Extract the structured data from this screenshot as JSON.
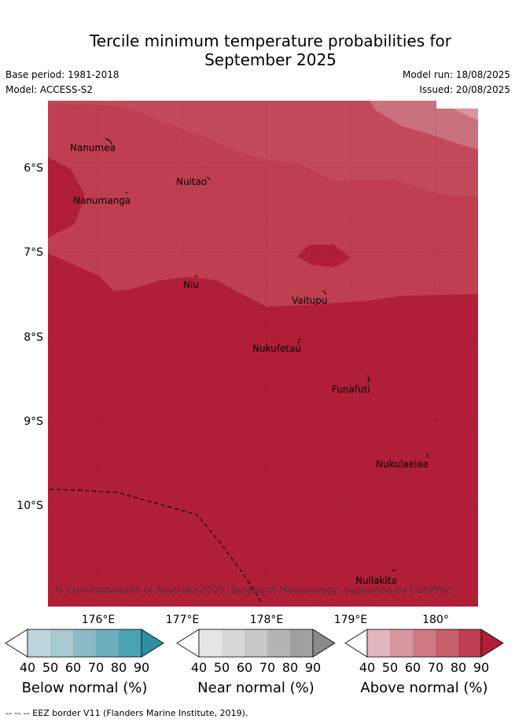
{
  "title_line1": "Tercile minimum temperature probabilities for",
  "title_line2": "September 2025",
  "base_period": "Base period: 1981-2018",
  "model": "Model: ACCESS-S2",
  "model_run": "Model run: 18/08/2025",
  "issued": "Issued: 20/08/2025",
  "copyright": "© Commonwealth of Australia 2025, Bureau of Meteorology, supported by COSPPac",
  "footer": "-- -- -- EEZ border V11 (Flanders Marine Institute, 2019).",
  "axes": {
    "lon_ticks": [
      "176°E",
      "177°E",
      "178°E",
      "179°E",
      "180°"
    ],
    "lat_ticks": [
      "6°S",
      "7°S",
      "8°S",
      "9°S",
      "10°S"
    ]
  },
  "places": [
    "Nanumea",
    "Nuitao",
    "Nanumanga",
    "Niu",
    "Vaitupu",
    "Nukufetau",
    "Funafuti",
    "Nukulaelae",
    "Nuilakita"
  ],
  "colorbars": {
    "below": {
      "title": "Below normal (%)",
      "ticks": [
        "40",
        "50",
        "60",
        "70",
        "80",
        "90"
      ],
      "colors": [
        "#ffffff",
        "#bdd5dc",
        "#a7c9d0",
        "#8cbac6",
        "#6aaebd",
        "#4aa2b3",
        "#2e8fa4"
      ]
    },
    "near": {
      "title": "Near normal (%)",
      "ticks": [
        "40",
        "50",
        "60",
        "70",
        "80",
        "90"
      ],
      "colors": [
        "#ffffff",
        "#e6e6e6",
        "#d8d8d8",
        "#c8c8c8",
        "#b4b4b4",
        "#a0a0a0",
        "#8a8a8a"
      ]
    },
    "above": {
      "title": "Above normal (%)",
      "ticks": [
        "40",
        "50",
        "60",
        "70",
        "80",
        "90"
      ],
      "colors": [
        "#ffffff",
        "#e2b7bf",
        "#d8969f",
        "#cf7a83",
        "#c65e6a",
        "#bf3e50",
        "#b01e38"
      ]
    }
  }
}
